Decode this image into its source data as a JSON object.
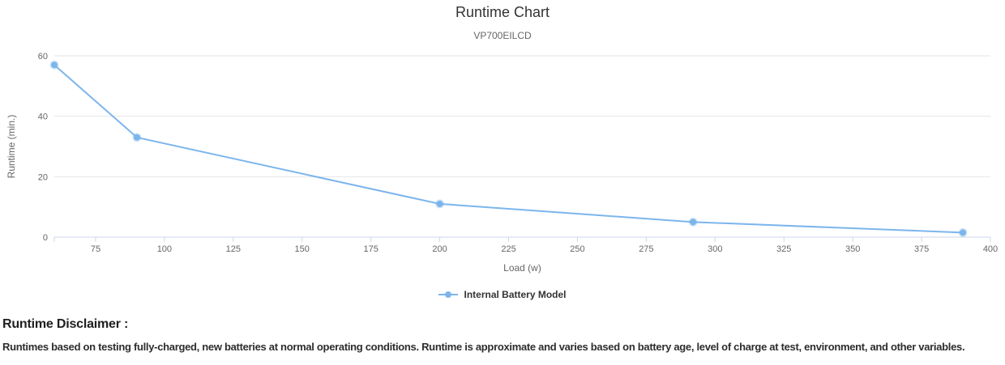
{
  "chart_data": {
    "type": "line",
    "title": "Runtime Chart",
    "subtitle": "VP700EILCD",
    "xlabel": "Load (w)",
    "ylabel": "Runtime (min.)",
    "xlim": [
      60,
      400
    ],
    "ylim": [
      0,
      60
    ],
    "x_ticks": [
      75,
      100,
      125,
      150,
      175,
      200,
      225,
      250,
      275,
      300,
      325,
      350,
      375,
      400
    ],
    "y_ticks": [
      0,
      20,
      40,
      60
    ],
    "grid": "horizontal-only",
    "legend_position": "bottom-center",
    "series": [
      {
        "name": "Internal Battery Model",
        "color": "#7cb5ec",
        "marker": "circle",
        "x": [
          60,
          90,
          200,
          292,
          390
        ],
        "y": [
          57,
          33,
          11,
          5,
          1.5
        ]
      }
    ]
  },
  "colors": {
    "accent_line": "#7cb5ec",
    "grid_line": "#e6e6e6",
    "axis_line": "#ccd6eb",
    "tick_label": "#666666",
    "axis_title": "#666666",
    "title_text": "#333333",
    "legend_text": "#333333"
  },
  "disclaimer": {
    "heading": "Runtime Disclaimer :",
    "body": "Runtimes based on testing fully-charged, new batteries at normal operating conditions. Runtime is approximate and varies based on battery age, level of charge at test, environment, and other variables."
  }
}
